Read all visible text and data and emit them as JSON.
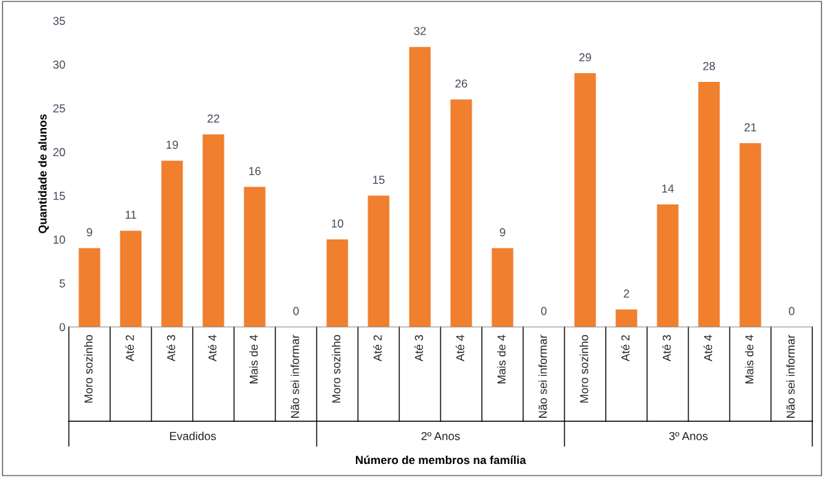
{
  "chart_data": {
    "type": "bar",
    "xlabel": "Número de membros na família",
    "ylabel": "Quantidade de alunos",
    "categories": [
      "Moro sozinho",
      "Até 2",
      "Até 3",
      "Até 4",
      "Mais de 4",
      "Não sei informar",
      "Moro sozinho",
      "Até 2",
      "Até 3",
      "Até 4",
      "Mais de 4",
      "Não sei informar",
      "Moro sozinho",
      "Até 2",
      "Até 3",
      "Até 4",
      "Mais de 4",
      "Não sei informar"
    ],
    "values": [
      9,
      11,
      19,
      22,
      16,
      0,
      10,
      15,
      32,
      26,
      9,
      0,
      29,
      2,
      14,
      28,
      21,
      0
    ],
    "color": "#f07f2e",
    "ylim": [
      0,
      35
    ],
    "yticks": [
      0,
      5,
      10,
      15,
      20,
      25,
      30,
      35
    ],
    "data_labels": true,
    "grid": false,
    "legend": false,
    "annotations": [
      "Evadidos",
      "2º Anos",
      "3º Anos"
    ]
  }
}
